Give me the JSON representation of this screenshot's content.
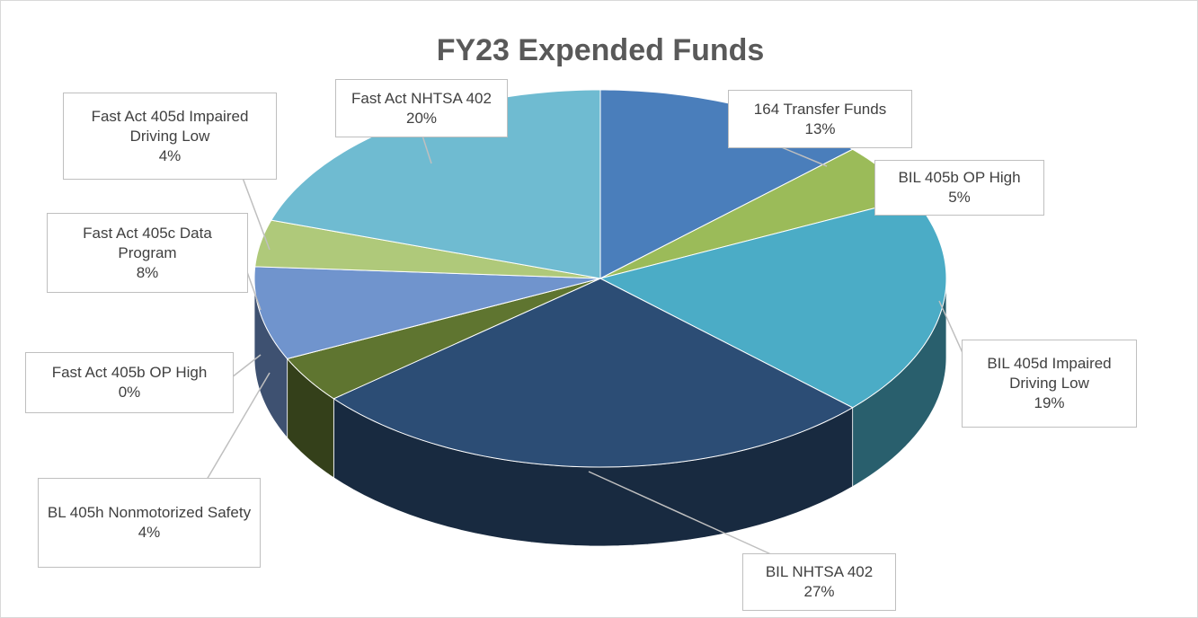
{
  "chart_data": {
    "type": "pie",
    "title": "FY23 Expended Funds",
    "categories": [
      "164 Transfer Funds",
      "BIL 405b OP High",
      "BIL 405d Impaired Driving Low",
      "BIL NHTSA 402",
      "BL 405h Nonmotorized Safety",
      "Fast Act 405b OP High",
      "Fast Act 405c Data Program",
      "Fast Act 405d Impaired Driving Low",
      "Fast Act NHTSA 402"
    ],
    "values": [
      13,
      5,
      19,
      27,
      4,
      0,
      8,
      4,
      20
    ],
    "value_labels": [
      "13%",
      "5%",
      "19%",
      "27%",
      "4%",
      "0%",
      "8%",
      "4%",
      "20%"
    ],
    "colors": [
      "#4a7ebb",
      "#9bbb59",
      "#4bacc6",
      "#2c4d75",
      "#5f7530",
      "#4f81bd",
      "#7094cd",
      "#afc97a",
      "#6fbbd1"
    ]
  }
}
